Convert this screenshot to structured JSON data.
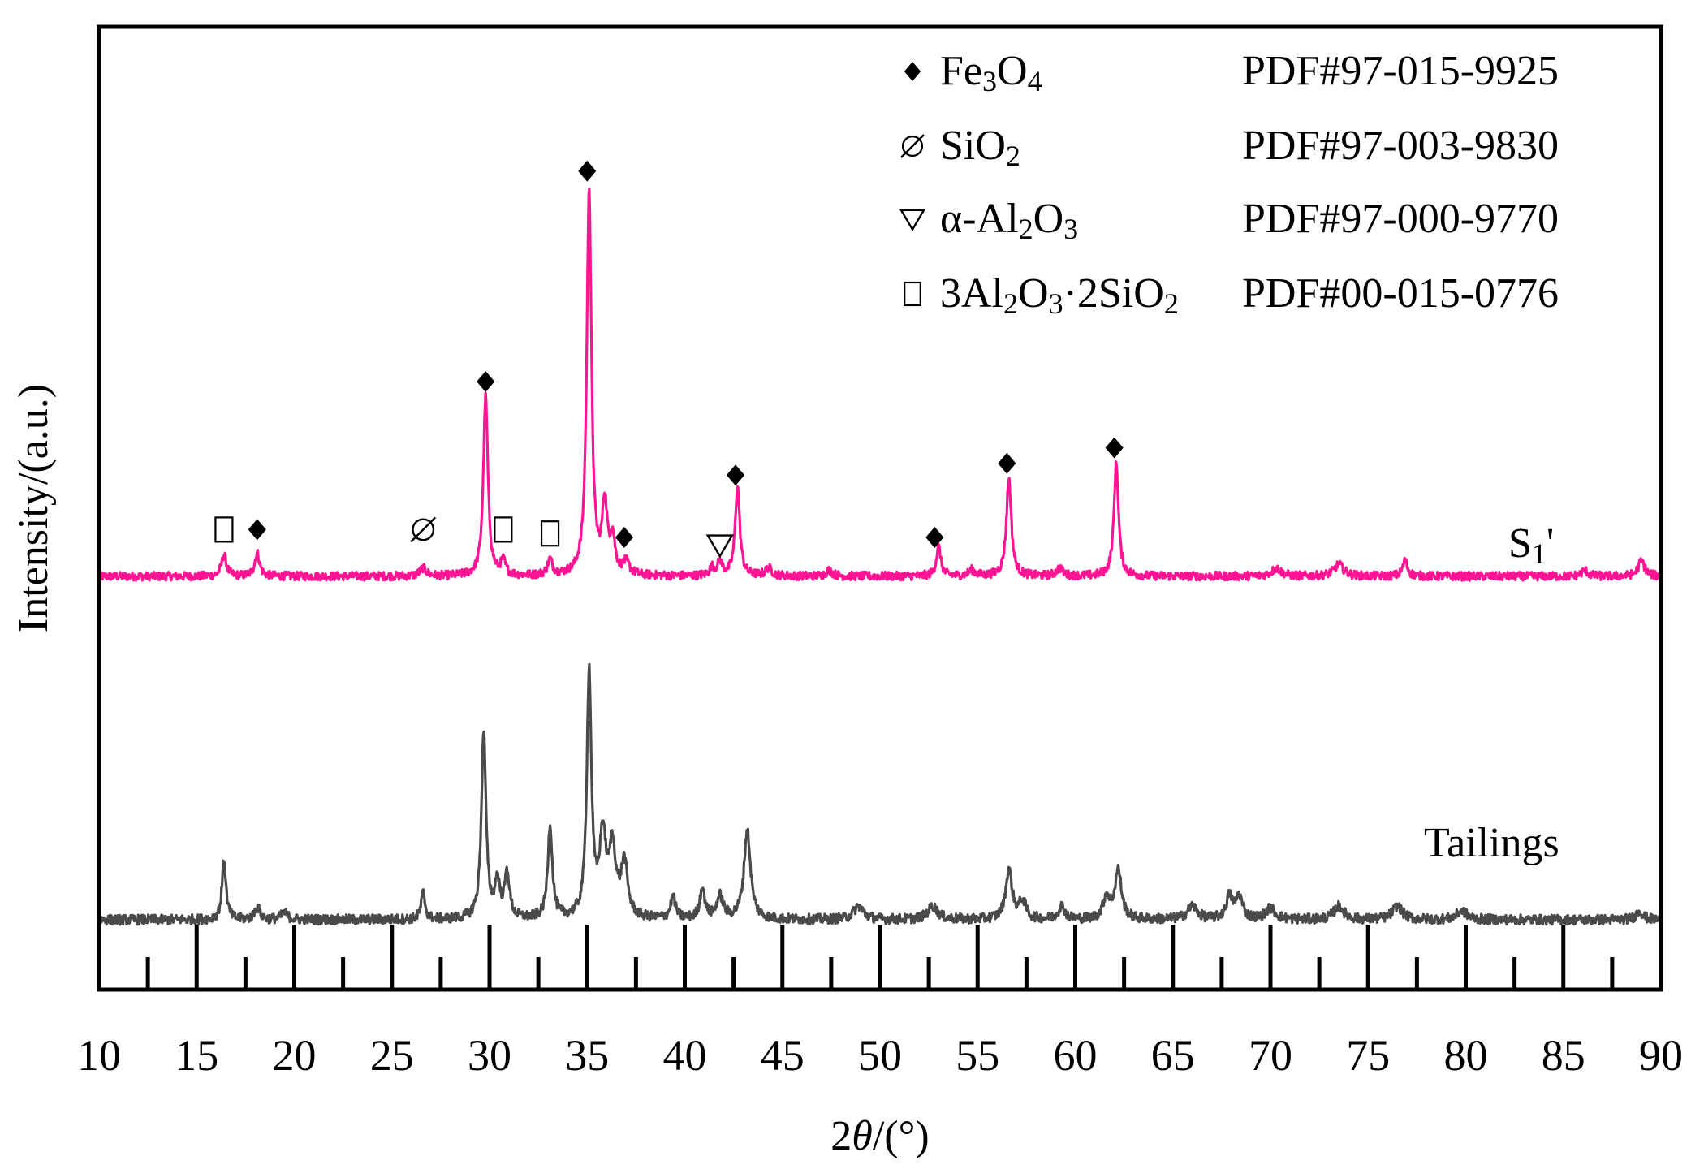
{
  "chart_data": {
    "type": "line",
    "xlabel_prefix": "2",
    "xlabel_theta": "θ",
    "xlabel_suffix": "/(°)",
    "ylabel": "Intensity/(a.u.)",
    "xlim": [
      10,
      90
    ],
    "x_ticks": [
      10,
      15,
      20,
      25,
      30,
      35,
      40,
      45,
      50,
      55,
      60,
      65,
      70,
      75,
      80,
      85,
      90
    ],
    "y_ticks": [],
    "grid": false,
    "legend_position": "top-right",
    "legend": [
      {
        "symbol": "diamond",
        "phase": "Fe3O4",
        "parts": [
          [
            "Fe",
            ""
          ],
          [
            "3",
            "sub"
          ],
          [
            "O",
            ""
          ],
          [
            "4",
            "sub"
          ]
        ],
        "pdf": "PDF#97-015-9925"
      },
      {
        "symbol": "slashed-circle",
        "phase": "SiO2",
        "parts": [
          [
            "SiO",
            ""
          ],
          [
            "2",
            "sub"
          ]
        ],
        "pdf": "PDF#97-003-9830"
      },
      {
        "symbol": "triangle-down",
        "phase": "α-Al2O3",
        "parts": [
          [
            "α-Al",
            ""
          ],
          [
            "2",
            "sub"
          ],
          [
            "O",
            ""
          ],
          [
            "3",
            "sub"
          ]
        ],
        "pdf": "PDF#97-000-9770"
      },
      {
        "symbol": "square",
        "phase": "3Al2O3·2SiO2",
        "parts": [
          [
            "3Al",
            ""
          ],
          [
            "2",
            "sub"
          ],
          [
            "O",
            ""
          ],
          [
            "3",
            "sub"
          ],
          [
            "·2SiO",
            ""
          ],
          [
            "2",
            "sub"
          ]
        ],
        "pdf": "PDF#00-015-0776"
      }
    ],
    "series": [
      {
        "name": "S1'",
        "label_parts": [
          [
            "S",
            ""
          ],
          [
            "1",
            "sub"
          ],
          [
            "'",
            ""
          ]
        ],
        "color": "#ff1493",
        "baseline": 1.0,
        "peaks": [
          [
            16.4,
            0.55,
            0.15
          ],
          [
            18.1,
            0.6,
            0.15
          ],
          [
            26.6,
            0.2,
            0.2
          ],
          [
            29.8,
            4.6,
            0.14
          ],
          [
            30.7,
            0.35,
            0.15
          ],
          [
            33.1,
            0.4,
            0.15
          ],
          [
            35.1,
            10.0,
            0.14
          ],
          [
            35.9,
            1.8,
            0.15
          ],
          [
            36.3,
            0.9,
            0.15
          ],
          [
            37.0,
            0.3,
            0.2
          ],
          [
            41.4,
            0.2,
            0.15
          ],
          [
            41.8,
            0.35,
            0.15
          ],
          [
            42.7,
            2.3,
            0.14
          ],
          [
            44.3,
            0.2,
            0.2
          ],
          [
            47.4,
            0.15,
            0.2
          ],
          [
            53.0,
            0.75,
            0.14
          ],
          [
            54.7,
            0.15,
            0.2
          ],
          [
            56.6,
            2.5,
            0.15
          ],
          [
            59.2,
            0.2,
            0.2
          ],
          [
            62.1,
            2.9,
            0.14
          ],
          [
            70.3,
            0.2,
            0.3
          ],
          [
            73.5,
            0.3,
            0.3
          ],
          [
            76.9,
            0.4,
            0.15
          ],
          [
            86.1,
            0.15,
            0.2
          ],
          [
            89.0,
            0.4,
            0.2
          ]
        ]
      },
      {
        "name": "Tailings",
        "label_parts": [
          [
            "Tailings",
            ""
          ]
        ],
        "color": "#4a4a4a",
        "baseline": 0.0,
        "peaks": [
          [
            16.4,
            1.35,
            0.12
          ],
          [
            18.1,
            0.3,
            0.15
          ],
          [
            19.5,
            0.15,
            0.2
          ],
          [
            26.6,
            0.6,
            0.12
          ],
          [
            29.7,
            4.2,
            0.14
          ],
          [
            30.4,
            0.8,
            0.15
          ],
          [
            30.9,
            1.0,
            0.15
          ],
          [
            33.1,
            2.1,
            0.14
          ],
          [
            35.1,
            5.5,
            0.14
          ],
          [
            35.8,
            1.8,
            0.2
          ],
          [
            36.3,
            1.5,
            0.2
          ],
          [
            36.9,
            1.2,
            0.2
          ],
          [
            39.4,
            0.5,
            0.15
          ],
          [
            40.9,
            0.7,
            0.15
          ],
          [
            41.8,
            0.5,
            0.2
          ],
          [
            43.2,
            2.0,
            0.2
          ],
          [
            48.9,
            0.3,
            0.3
          ],
          [
            52.7,
            0.3,
            0.3
          ],
          [
            56.6,
            1.1,
            0.2
          ],
          [
            57.3,
            0.4,
            0.2
          ],
          [
            59.3,
            0.3,
            0.2
          ],
          [
            61.6,
            0.5,
            0.2
          ],
          [
            62.2,
            1.1,
            0.2
          ],
          [
            66.0,
            0.3,
            0.3
          ],
          [
            67.9,
            0.5,
            0.2
          ],
          [
            68.4,
            0.5,
            0.2
          ],
          [
            70.0,
            0.25,
            0.3
          ],
          [
            73.5,
            0.3,
            0.3
          ],
          [
            76.5,
            0.3,
            0.3
          ],
          [
            79.8,
            0.2,
            0.3
          ],
          [
            88.9,
            0.2,
            0.2
          ]
        ]
      }
    ],
    "annotations": [
      {
        "series": "S1'",
        "x": 16.4,
        "y": 2.2,
        "symbol": "square"
      },
      {
        "series": "S1'",
        "x": 18.1,
        "y": 2.2,
        "symbol": "diamond"
      },
      {
        "series": "S1'",
        "x": 26.6,
        "y": 2.2,
        "symbol": "slashed-circle"
      },
      {
        "series": "S1'",
        "x": 30.7,
        "y": 2.2,
        "symbol": "square"
      },
      {
        "series": "S1'",
        "x": 33.1,
        "y": 2.1,
        "symbol": "square"
      },
      {
        "series": "S1'",
        "x": 36.9,
        "y": 2.0,
        "symbol": "diamond"
      },
      {
        "series": "S1'",
        "x": 41.8,
        "y": 1.8,
        "symbol": "triangle-down"
      },
      {
        "series": "S1'",
        "x": 29.8,
        "y": 6.0,
        "symbol": "diamond"
      },
      {
        "series": "S1'",
        "x": 35.0,
        "y": 11.4,
        "symbol": "diamond"
      },
      {
        "series": "S1'",
        "x": 42.6,
        "y": 3.6,
        "symbol": "diamond"
      },
      {
        "series": "S1'",
        "x": 52.8,
        "y": 2.0,
        "symbol": "diamond"
      },
      {
        "series": "S1'",
        "x": 56.5,
        "y": 3.9,
        "symbol": "diamond"
      },
      {
        "series": "S1'",
        "x": 62.0,
        "y": 4.3,
        "symbol": "diamond"
      }
    ]
  }
}
